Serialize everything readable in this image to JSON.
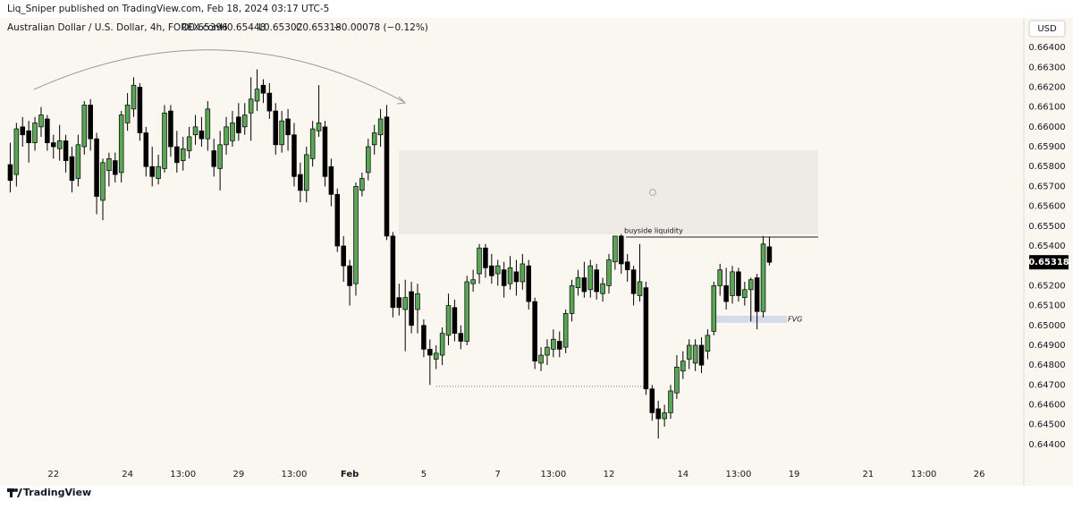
{
  "header": {
    "credit": "Liq_Sniper published on TradingView.com, Feb 18, 2024 03:17 UTC-5",
    "symbol": "Australian Dollar / U.S. Dollar, 4h, FOREX.com",
    "ohlc": [
      "O0.65396",
      "H0.65448",
      "L0.65302",
      "C0.65318",
      "−0.00078 (−0.12%)"
    ]
  },
  "footer": {
    "brand": "TradingView"
  },
  "chart_data": {
    "type": "candlestick",
    "y_unit": "USD",
    "up_color": "#5aa655",
    "down_color": "#000000",
    "grid": false,
    "ylim": [
      0.64296,
      0.66549
    ],
    "yticks": [
      {
        "value": 0.664,
        "label": "0.66400"
      },
      {
        "value": 0.663,
        "label": "0.66300"
      },
      {
        "value": 0.662,
        "label": "0.66200"
      },
      {
        "value": 0.661,
        "label": "0.66100"
      },
      {
        "value": 0.66,
        "label": "0.66000"
      },
      {
        "value": 0.659,
        "label": "0.65900"
      },
      {
        "value": 0.658,
        "label": "0.65800"
      },
      {
        "value": 0.657,
        "label": "0.65700"
      },
      {
        "value": 0.656,
        "label": "0.65600"
      },
      {
        "value": 0.655,
        "label": "0.65500"
      },
      {
        "value": 0.654,
        "label": "0.65400"
      },
      {
        "value": 0.653,
        "label": "0.65300"
      },
      {
        "value": 0.652,
        "label": "0.65200"
      },
      {
        "value": 0.651,
        "label": "0.65100"
      },
      {
        "value": 0.65,
        "label": "0.65000"
      },
      {
        "value": 0.649,
        "label": "0.64900"
      },
      {
        "value": 0.648,
        "label": "0.64800"
      },
      {
        "value": 0.647,
        "label": "0.64700"
      },
      {
        "value": 0.646,
        "label": "0.64600"
      },
      {
        "value": 0.645,
        "label": "0.64500"
      },
      {
        "value": 0.644,
        "label": "0.64400"
      }
    ],
    "categories": [
      null,
      null,
      null,
      null,
      null,
      null,
      null,
      "22",
      null,
      null,
      null,
      null,
      null,
      null,
      null,
      null,
      null,
      null,
      null,
      "24",
      null,
      null,
      null,
      null,
      null,
      null,
      null,
      null,
      "13:00",
      null,
      null,
      null,
      null,
      null,
      null,
      null,
      null,
      "29",
      null,
      null,
      null,
      null,
      null,
      null,
      null,
      null,
      "13:00",
      null,
      null,
      null,
      null,
      null,
      null,
      null,
      null,
      "Feb",
      null,
      null,
      null,
      null,
      null,
      null,
      null,
      null,
      null,
      null,
      null,
      "5",
      null,
      null,
      null,
      null,
      null,
      null,
      null,
      null,
      null,
      null,
      null,
      "7",
      null,
      null,
      null,
      null,
      null,
      null,
      null,
      null,
      "13:00",
      null,
      null,
      null,
      null,
      null,
      null,
      null,
      null,
      "12",
      null,
      null,
      null,
      null,
      null,
      null,
      null,
      null,
      null,
      null,
      null,
      "14",
      null,
      null,
      null,
      null,
      null,
      null,
      null,
      null,
      "13:00",
      null,
      null,
      null,
      null,
      null,
      null,
      null,
      null,
      "19",
      null,
      null,
      null,
      null,
      null,
      null,
      null,
      null,
      null,
      null,
      null,
      "21",
      null,
      null,
      null,
      null,
      null,
      null,
      null,
      null,
      "13:00",
      null,
      null,
      null,
      null,
      null,
      null,
      null,
      null,
      "26",
      null,
      null,
      null,
      null,
      null,
      null
    ],
    "open": [
      0.6581,
      0.6576,
      0.66,
      0.6598,
      0.6592,
      0.66,
      0.6604,
      0.6592,
      0.6589,
      0.6593,
      0.6585,
      0.6574,
      0.659,
      0.6611,
      0.6594,
      0.6563,
      0.6578,
      0.6583,
      0.6577,
      0.6602,
      0.6609,
      0.662,
      0.6597,
      0.658,
      0.6574,
      0.6579,
      0.6608,
      0.659,
      0.6583,
      0.6588,
      0.6596,
      0.6598,
      0.6594,
      0.6588,
      0.6579,
      0.6591,
      0.6593,
      0.6605,
      0.66,
      0.6607,
      0.6613,
      0.6621,
      0.6617,
      0.6608,
      0.6591,
      0.6604,
      0.6596,
      0.6576,
      0.6568,
      0.6584,
      0.6598,
      0.66,
      0.658,
      0.6566,
      0.654,
      0.653,
      0.6521,
      0.6568,
      0.6577,
      0.6591,
      0.6596,
      0.6605,
      0.6545,
      0.6514,
      0.6508,
      0.6517,
      0.6508,
      0.65,
      0.6488,
      0.6483,
      0.6485,
      0.6495,
      0.6509,
      0.6496,
      0.6492,
      0.6521,
      0.6526,
      0.6539,
      0.653,
      0.6526,
      0.6528,
      0.6521,
      0.6527,
      0.6522,
      0.653,
      0.6512,
      0.6481,
      0.6485,
      0.6488,
      0.6492,
      0.6489,
      0.6506,
      0.6519,
      0.6524,
      0.6518,
      0.6528,
      0.6516,
      0.652,
      0.6532,
      0.6545,
      0.6532,
      0.6528,
      0.6515,
      0.6519,
      0.6468,
      0.6458,
      0.6453,
      0.6456,
      0.6466,
      0.6477,
      0.6483,
      0.6481,
      0.649,
      0.6487,
      0.6497,
      0.652,
      0.652,
      0.6515,
      0.6527,
      0.6514,
      0.6518,
      0.6524,
      0.6507,
      0.65396,
      null,
      null,
      null,
      null,
      null,
      null,
      null,
      null,
      null,
      null,
      null,
      null,
      null,
      null,
      null,
      null,
      null,
      null,
      null,
      null,
      null,
      null,
      null,
      null,
      null,
      null,
      null,
      null,
      null,
      null,
      null,
      null,
      null,
      null,
      null,
      null,
      null,
      null,
      null,
      null
    ],
    "high": [
      0.6592,
      0.6602,
      0.6605,
      0.6603,
      0.6605,
      0.661,
      0.6606,
      0.6596,
      0.6601,
      0.6596,
      0.659,
      0.6596,
      0.6613,
      0.6614,
      0.6597,
      0.6584,
      0.6587,
      0.6587,
      0.6608,
      0.6617,
      0.6625,
      0.6622,
      0.66,
      0.659,
      0.6586,
      0.6611,
      0.6611,
      0.6598,
      0.6595,
      0.66,
      0.6606,
      0.6605,
      0.6613,
      0.6594,
      0.6598,
      0.6605,
      0.6608,
      0.6612,
      0.6612,
      0.6625,
      0.6629,
      0.6624,
      0.6622,
      0.6612,
      0.6608,
      0.6609,
      0.6602,
      0.6582,
      0.659,
      0.6603,
      0.6621,
      0.6603,
      0.6584,
      0.6569,
      0.6545,
      0.6533,
      0.6572,
      0.6577,
      0.6594,
      0.6601,
      0.6609,
      0.6611,
      0.6547,
      0.6521,
      0.6523,
      0.6522,
      0.6521,
      0.6503,
      0.6493,
      0.649,
      0.6499,
      0.6516,
      0.6513,
      0.65,
      0.6525,
      0.6528,
      0.6541,
      0.6541,
      0.6536,
      0.6533,
      0.6532,
      0.6535,
      0.6533,
      0.6536,
      0.6533,
      0.6514,
      0.6489,
      0.6493,
      0.6498,
      0.6497,
      0.6508,
      0.6523,
      0.6528,
      0.6532,
      0.6533,
      0.6531,
      0.6524,
      0.6536,
      0.6545,
      0.6546,
      0.6536,
      0.653,
      0.6541,
      0.6522,
      0.647,
      0.6462,
      0.646,
      0.647,
      0.6485,
      0.6487,
      0.6493,
      0.6493,
      0.6494,
      0.6498,
      0.6522,
      0.6531,
      0.6529,
      0.653,
      0.6529,
      0.6522,
      0.6524,
      0.6526,
      0.6545,
      0.65448,
      null,
      null,
      null,
      null,
      null,
      null,
      null,
      null,
      null,
      null,
      null,
      null,
      null,
      null,
      null,
      null,
      null,
      null,
      null,
      null,
      null,
      null,
      null,
      null,
      null,
      null,
      null,
      null,
      null,
      null,
      null,
      null,
      null,
      null,
      null,
      null,
      null,
      null,
      null,
      null
    ],
    "low": [
      0.6567,
      0.657,
      0.659,
      0.6582,
      0.6588,
      0.6595,
      0.6588,
      0.6584,
      0.6583,
      0.6577,
      0.6567,
      0.657,
      0.6586,
      0.6588,
      0.6556,
      0.6553,
      0.657,
      0.6572,
      0.6572,
      0.6598,
      0.6605,
      0.6593,
      0.6575,
      0.657,
      0.6571,
      0.6577,
      0.6585,
      0.6577,
      0.6578,
      0.6584,
      0.6591,
      0.659,
      0.6588,
      0.6575,
      0.6568,
      0.6586,
      0.659,
      0.6593,
      0.6596,
      0.6593,
      0.6608,
      0.6612,
      0.6604,
      0.6586,
      0.6587,
      0.6588,
      0.657,
      0.6562,
      0.6562,
      0.658,
      0.6595,
      0.657,
      0.656,
      0.6537,
      0.6522,
      0.651,
      0.6515,
      0.6565,
      0.6573,
      0.6586,
      0.659,
      0.6543,
      0.6504,
      0.6505,
      0.6487,
      0.6496,
      0.6496,
      0.6484,
      0.647,
      0.6478,
      0.648,
      0.649,
      0.6492,
      0.6488,
      0.649,
      0.6517,
      0.6521,
      0.6524,
      0.6521,
      0.652,
      0.6514,
      0.6518,
      0.6515,
      0.6518,
      0.6508,
      0.6478,
      0.6477,
      0.648,
      0.6484,
      0.6484,
      0.6486,
      0.6502,
      0.6515,
      0.6514,
      0.6514,
      0.6513,
      0.6512,
      0.6516,
      0.6528,
      0.6526,
      0.6522,
      0.651,
      0.6512,
      0.6465,
      0.6452,
      0.6443,
      0.6449,
      0.6453,
      0.6463,
      0.6473,
      0.6478,
      0.6477,
      0.6476,
      0.6483,
      0.6495,
      0.6515,
      0.6508,
      0.6511,
      0.6512,
      0.651,
      0.6502,
      0.6498,
      0.6504,
      0.65302,
      null,
      null,
      null,
      null,
      null,
      null,
      null,
      null,
      null,
      null,
      null,
      null,
      null,
      null,
      null,
      null,
      null,
      null,
      null,
      null,
      null,
      null,
      null,
      null,
      null,
      null,
      null,
      null,
      null,
      null,
      null,
      null,
      null,
      null,
      null,
      null,
      null,
      null,
      null,
      null
    ],
    "close": [
      0.6573,
      0.6599,
      0.6596,
      0.6592,
      0.6602,
      0.6606,
      0.6592,
      0.659,
      0.6593,
      0.6583,
      0.6573,
      0.6591,
      0.6611,
      0.6594,
      0.6565,
      0.6582,
      0.6584,
      0.6576,
      0.6606,
      0.6611,
      0.6621,
      0.6597,
      0.658,
      0.6575,
      0.658,
      0.6607,
      0.659,
      0.6582,
      0.6589,
      0.6595,
      0.66,
      0.6594,
      0.6609,
      0.658,
      0.6591,
      0.66,
      0.6602,
      0.6597,
      0.6606,
      0.6614,
      0.6619,
      0.6617,
      0.6608,
      0.6591,
      0.6603,
      0.6596,
      0.6575,
      0.6568,
      0.6586,
      0.6599,
      0.6602,
      0.6575,
      0.6566,
      0.654,
      0.653,
      0.652,
      0.657,
      0.6574,
      0.659,
      0.6597,
      0.6604,
      0.6545,
      0.6509,
      0.6509,
      0.6514,
      0.65,
      0.6516,
      0.6488,
      0.6485,
      0.6486,
      0.6496,
      0.651,
      0.6496,
      0.6492,
      0.6522,
      0.6523,
      0.6539,
      0.6529,
      0.6525,
      0.653,
      0.652,
      0.6529,
      0.6522,
      0.6531,
      0.6512,
      0.6482,
      0.6485,
      0.6489,
      0.6493,
      0.6488,
      0.6506,
      0.652,
      0.6524,
      0.6517,
      0.653,
      0.6517,
      0.6521,
      0.6533,
      0.6545,
      0.6531,
      0.6528,
      0.6516,
      0.6522,
      0.6468,
      0.6456,
      0.6453,
      0.6456,
      0.6467,
      0.6479,
      0.6482,
      0.649,
      0.649,
      0.648,
      0.6495,
      0.652,
      0.6528,
      0.6512,
      0.6527,
      0.6515,
      0.6518,
      0.6523,
      0.6507,
      0.6541,
      0.65318,
      null,
      null,
      null,
      null,
      null,
      null,
      null,
      null,
      null,
      null,
      null,
      null,
      null,
      null,
      null,
      null,
      null,
      null,
      null,
      null,
      null,
      null,
      null,
      null,
      null,
      null,
      null,
      null,
      null,
      null,
      null,
      null,
      null,
      null,
      null,
      null,
      null,
      null,
      null,
      null
    ],
    "annotations": {
      "zone": [
        0.65459,
        0.65882
      ],
      "liquidity": {
        "label": "buyside liquidity",
        "value": 0.65445
      },
      "low_line": 0.64693,
      "fvg": {
        "label": "FVG",
        "range": [
          0.65013,
          0.65049
        ]
      }
    }
  }
}
